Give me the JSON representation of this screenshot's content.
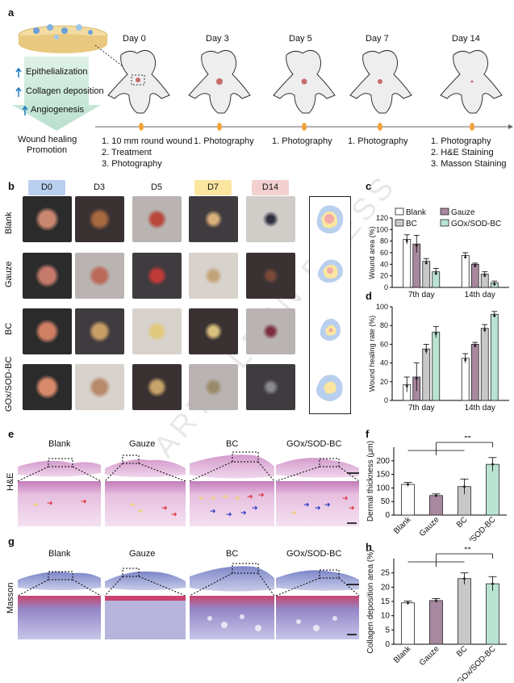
{
  "watermark": "ARTICLE IN PRESS",
  "panel_a": {
    "letter": "a",
    "effects": [
      "Epithelialization",
      "Collagen deposition",
      "Angiogenesis"
    ],
    "promotion": [
      "Wound healing",
      "Promotion"
    ],
    "days": [
      "Day 0",
      "Day 3",
      "Day 5",
      "Day 7",
      "Day 14"
    ],
    "steps_day0": [
      "1. 10 mm round wound",
      "2. Treatment",
      "3. Photography"
    ],
    "steps_mid": "1. Photography",
    "steps_day14": [
      "1. Photography",
      "2. H&E Staining",
      "3. Masson Staining"
    ]
  },
  "panel_b": {
    "letter": "b",
    "day_labels": [
      "D0",
      "D3",
      "D5",
      "D7",
      "D14"
    ],
    "day_colors": [
      "#b9cfee",
      "#ffffff",
      "#ffffff",
      "#fbe6a0",
      "#f2d0cf"
    ],
    "groups": [
      "Blank",
      "Gauze",
      "BC",
      "GOx/SOD-BC"
    ]
  },
  "panel_c": {
    "letter": "c"
  },
  "panel_d": {
    "letter": "d"
  },
  "panel_e": {
    "letter": "e",
    "row_label": "H&E",
    "groups": [
      "Blank",
      "Gauze",
      "BC",
      "GOx/SOD-BC"
    ]
  },
  "panel_f": {
    "letter": "f"
  },
  "panel_g": {
    "letter": "g",
    "row_label": "Masson",
    "groups": [
      "Blank",
      "Gauze",
      "BC",
      "GOx/SOD-BC"
    ]
  },
  "panel_h": {
    "letter": "h"
  },
  "chart_data": [
    {
      "type": "bar",
      "id": "c",
      "legend": [
        "Blank",
        "Gauze",
        "BC",
        "GOx/SOD-BC"
      ],
      "colors": [
        "#ffffff",
        "#a7889f",
        "#c8c8c8",
        "#b9e3d2"
      ],
      "categories": [
        "7th day",
        "14th day"
      ],
      "ylabel": "Wound area (%)",
      "ylim": [
        0,
        120
      ],
      "yticks": [
        0,
        20,
        40,
        60,
        80,
        100,
        120
      ],
      "series": [
        {
          "name": "Blank",
          "values": [
            83,
            55
          ],
          "errors": [
            8,
            5
          ]
        },
        {
          "name": "Gauze",
          "values": [
            75,
            40
          ],
          "errors": [
            15,
            2
          ]
        },
        {
          "name": "BC",
          "values": [
            45,
            23
          ],
          "errors": [
            5,
            4
          ]
        },
        {
          "name": "GOx/SOD-BC",
          "values": [
            27,
            8
          ],
          "errors": [
            6,
            3
          ]
        }
      ]
    },
    {
      "type": "bar",
      "id": "d",
      "categories": [
        "7th day",
        "14th day"
      ],
      "ylabel": "Wound healing rate (%)",
      "ylim": [
        0,
        100
      ],
      "yticks": [
        0,
        20,
        40,
        60,
        80,
        100
      ],
      "series": [
        {
          "name": "Blank",
          "values": [
            17,
            45
          ],
          "errors": [
            8,
            5
          ]
        },
        {
          "name": "Gauze",
          "values": [
            25,
            60
          ],
          "errors": [
            15,
            2
          ]
        },
        {
          "name": "BC",
          "values": [
            55,
            77
          ],
          "errors": [
            5,
            4
          ]
        },
        {
          "name": "GOx/SOD-BC",
          "values": [
            73,
            92
          ],
          "errors": [
            6,
            3
          ]
        }
      ]
    },
    {
      "type": "bar",
      "id": "f",
      "categories": [
        "Blank",
        "Gauze",
        "BC",
        "GOx/SOD-BC"
      ],
      "ylabel": "Dermal thickness (μm)",
      "ylim": [
        0,
        250
      ],
      "yticks": [
        0,
        50,
        100,
        150,
        200
      ],
      "values": [
        113,
        72,
        105,
        187
      ],
      "errors": [
        7,
        6,
        28,
        25
      ],
      "colors": [
        "#ffffff",
        "#a7889f",
        "#c8c8c8",
        "#b9e3d2"
      ],
      "significance": "**"
    },
    {
      "type": "bar",
      "id": "h",
      "categories": [
        "Blank",
        "Gauze",
        "BC",
        "GOx/SOD-BC"
      ],
      "ylabel": "Collagen deposition area (%)",
      "ylim": [
        0,
        30
      ],
      "yticks": [
        0,
        5,
        10,
        15,
        20,
        25
      ],
      "values": [
        14.5,
        15.3,
        23,
        21.2
      ],
      "errors": [
        0.6,
        0.7,
        2,
        2.5
      ],
      "colors": [
        "#ffffff",
        "#a7889f",
        "#c8c8c8",
        "#b9e3d2"
      ],
      "significance": "**"
    }
  ]
}
